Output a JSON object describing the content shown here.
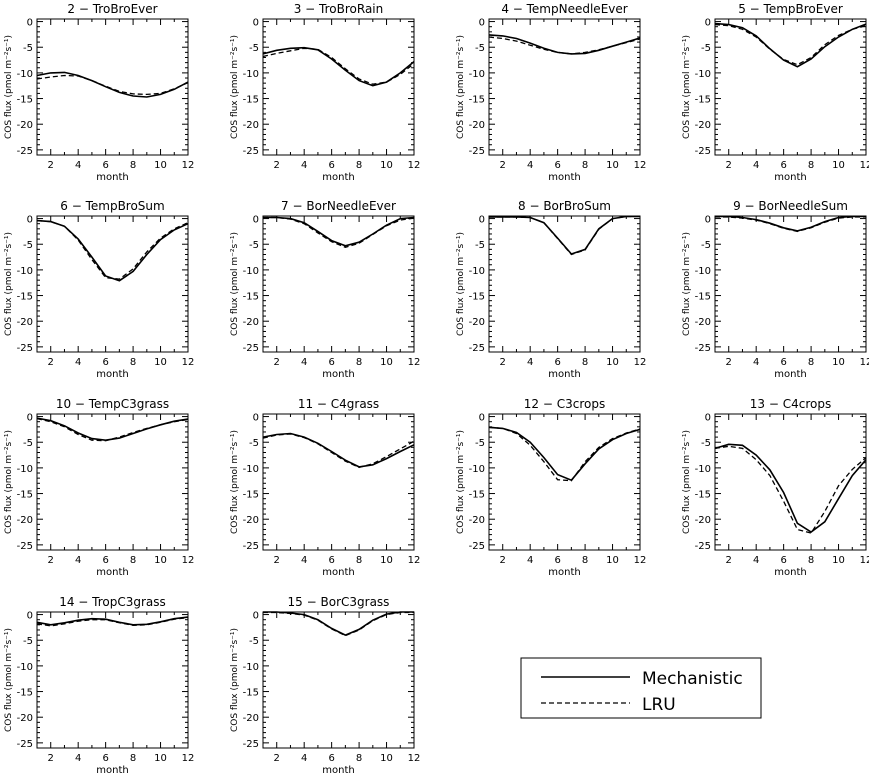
{
  "legend": {
    "placement": "bottom-right",
    "entries": [
      {
        "label": "Mechanistic",
        "style": "solid"
      },
      {
        "label": "LRU",
        "style": "dashed"
      }
    ]
  },
  "shared": {
    "xlabel": "month",
    "ylabel": "COS flux (pmol m⁻²s⁻¹)",
    "xlim": [
      1,
      12
    ],
    "ylim": [
      -26,
      0.5
    ],
    "xticks": [
      2,
      4,
      6,
      8,
      10,
      12
    ],
    "yticks": [
      0,
      -5,
      -10,
      -15,
      -20,
      -25
    ],
    "color": "#000000"
  },
  "chart_data": [
    {
      "type": "line",
      "title": "2 − TroBroEver",
      "x": [
        1,
        2,
        3,
        4,
        5,
        6,
        7,
        8,
        9,
        10,
        11,
        12
      ],
      "series": [
        {
          "name": "Mechanistic",
          "values": [
            -10.5,
            -10.0,
            -9.9,
            -10.5,
            -11.5,
            -12.7,
            -13.8,
            -14.5,
            -14.7,
            -14.2,
            -13.2,
            -11.8
          ]
        },
        {
          "name": "LRU",
          "values": [
            -11.2,
            -10.8,
            -10.5,
            -10.6,
            -11.5,
            -12.6,
            -13.6,
            -14.1,
            -14.2,
            -14.0,
            -13.1,
            -11.9
          ]
        }
      ]
    },
    {
      "type": "line",
      "title": "3 − TroBroRain",
      "x": [
        1,
        2,
        3,
        4,
        5,
        6,
        7,
        8,
        9,
        10,
        11,
        12
      ],
      "series": [
        {
          "name": "Mechanistic",
          "values": [
            -6.3,
            -5.6,
            -5.2,
            -5.1,
            -5.5,
            -7.3,
            -9.5,
            -11.5,
            -12.5,
            -11.8,
            -10.0,
            -7.8
          ]
        },
        {
          "name": "LRU",
          "values": [
            -6.8,
            -6.2,
            -5.7,
            -5.2,
            -5.4,
            -7.0,
            -9.2,
            -11.2,
            -12.2,
            -11.8,
            -10.3,
            -8.2
          ]
        }
      ]
    },
    {
      "type": "line",
      "title": "4 − TempNeedleEver",
      "x": [
        1,
        2,
        3,
        4,
        5,
        6,
        7,
        8,
        9,
        10,
        11,
        12
      ],
      "series": [
        {
          "name": "Mechanistic",
          "values": [
            -2.6,
            -2.8,
            -3.3,
            -4.2,
            -5.2,
            -6.0,
            -6.3,
            -6.2,
            -5.6,
            -4.8,
            -4.0,
            -3.2
          ]
        },
        {
          "name": "LRU",
          "values": [
            -3.0,
            -3.3,
            -3.8,
            -4.6,
            -5.4,
            -6.0,
            -6.3,
            -6.0,
            -5.5,
            -4.8,
            -4.1,
            -3.4
          ]
        }
      ]
    },
    {
      "type": "line",
      "title": "5 − TempBroEver",
      "x": [
        1,
        2,
        3,
        4,
        5,
        6,
        7,
        8,
        9,
        10,
        11,
        12
      ],
      "series": [
        {
          "name": "Mechanistic",
          "values": [
            -0.4,
            -0.6,
            -1.2,
            -2.8,
            -5.3,
            -7.5,
            -8.8,
            -7.3,
            -4.9,
            -3.0,
            -1.5,
            -0.5
          ]
        },
        {
          "name": "LRU",
          "values": [
            -0.6,
            -0.8,
            -1.5,
            -3.0,
            -5.4,
            -7.4,
            -8.4,
            -7.0,
            -4.5,
            -2.7,
            -1.5,
            -0.8
          ]
        }
      ]
    },
    {
      "type": "line",
      "title": "6 − TempBroSum",
      "x": [
        1,
        2,
        3,
        4,
        5,
        6,
        7,
        8,
        9,
        10,
        11,
        12
      ],
      "series": [
        {
          "name": "Mechanistic",
          "values": [
            -0.4,
            -0.6,
            -1.5,
            -4.0,
            -7.5,
            -11.2,
            -12.1,
            -10.3,
            -7.0,
            -4.1,
            -2.2,
            -1.0
          ]
        },
        {
          "name": "LRU",
          "values": [
            -0.4,
            -0.6,
            -1.5,
            -4.2,
            -8.0,
            -11.5,
            -11.8,
            -9.8,
            -6.5,
            -3.8,
            -2.0,
            -0.8
          ]
        }
      ]
    },
    {
      "type": "line",
      "title": "7 − BorNeedleEver",
      "x": [
        1,
        2,
        3,
        4,
        5,
        6,
        7,
        8,
        9,
        10,
        11,
        12
      ],
      "series": [
        {
          "name": "Mechanistic",
          "values": [
            0.2,
            0.2,
            0.0,
            -0.8,
            -2.5,
            -4.3,
            -5.3,
            -4.6,
            -3.0,
            -1.3,
            0.0,
            0.2
          ]
        },
        {
          "name": "LRU",
          "values": [
            0.2,
            0.2,
            -0.1,
            -1.0,
            -2.8,
            -4.5,
            -5.6,
            -4.8,
            -3.1,
            -1.4,
            -0.3,
            0.1
          ]
        }
      ]
    },
    {
      "type": "line",
      "title": "8 − BorBroSum",
      "x": [
        1,
        2,
        3,
        4,
        5,
        6,
        7,
        8,
        9,
        10,
        11,
        12
      ],
      "series": [
        {
          "name": "Mechanistic",
          "values": [
            0.3,
            0.3,
            0.3,
            0.2,
            -0.8,
            -3.8,
            -6.9,
            -6.0,
            -2.0,
            0.0,
            0.4,
            0.4
          ]
        },
        {
          "name": "LRU",
          "values": [
            0.3,
            0.3,
            0.3,
            0.2,
            -0.8,
            -3.9,
            -7.0,
            -6.1,
            -2.1,
            0.0,
            0.4,
            0.4
          ]
        }
      ]
    },
    {
      "type": "line",
      "title": "9 − BorNeedleSum",
      "x": [
        1,
        2,
        3,
        4,
        5,
        6,
        7,
        8,
        9,
        10,
        11,
        12
      ],
      "series": [
        {
          "name": "Mechanistic",
          "values": [
            0.4,
            0.4,
            0.2,
            -0.2,
            -0.9,
            -1.8,
            -2.4,
            -1.7,
            -0.6,
            0.2,
            0.4,
            0.4
          ]
        },
        {
          "name": "LRU",
          "values": [
            0.3,
            0.3,
            0.1,
            -0.3,
            -1.0,
            -1.9,
            -2.5,
            -1.8,
            -0.7,
            0.1,
            0.3,
            0.3
          ]
        }
      ]
    },
    {
      "type": "line",
      "title": "10 − TempC3grass",
      "x": [
        1,
        2,
        3,
        4,
        5,
        6,
        7,
        8,
        9,
        10,
        11,
        12
      ],
      "series": [
        {
          "name": "Mechanistic",
          "values": [
            -0.3,
            -0.8,
            -1.8,
            -3.2,
            -4.3,
            -4.6,
            -4.2,
            -3.3,
            -2.4,
            -1.6,
            -0.9,
            -0.5
          ]
        },
        {
          "name": "LRU",
          "values": [
            -0.4,
            -1.0,
            -2.0,
            -3.5,
            -4.6,
            -4.7,
            -4.0,
            -3.1,
            -2.3,
            -1.6,
            -1.0,
            -0.6
          ]
        }
      ]
    },
    {
      "type": "line",
      "title": "11 − C4grass",
      "x": [
        1,
        2,
        3,
        4,
        5,
        6,
        7,
        8,
        9,
        10,
        11,
        12
      ],
      "series": [
        {
          "name": "Mechanistic",
          "values": [
            -4.0,
            -3.5,
            -3.3,
            -4.0,
            -5.2,
            -6.8,
            -8.5,
            -9.8,
            -9.4,
            -8.2,
            -6.8,
            -5.5
          ]
        },
        {
          "name": "LRU",
          "values": [
            -4.2,
            -3.6,
            -3.4,
            -4.1,
            -5.3,
            -7.0,
            -8.7,
            -9.9,
            -9.2,
            -7.8,
            -6.3,
            -4.8
          ]
        }
      ]
    },
    {
      "type": "line",
      "title": "12 − C3crops",
      "x": [
        1,
        2,
        3,
        4,
        5,
        6,
        7,
        8,
        9,
        10,
        11,
        12
      ],
      "series": [
        {
          "name": "Mechanistic",
          "values": [
            -2.1,
            -2.3,
            -3.1,
            -5.0,
            -8.0,
            -11.3,
            -12.4,
            -9.2,
            -6.3,
            -4.5,
            -3.3,
            -2.5
          ]
        },
        {
          "name": "LRU",
          "values": [
            -2.1,
            -2.3,
            -3.3,
            -5.6,
            -8.8,
            -12.3,
            -12.5,
            -8.8,
            -6.0,
            -4.3,
            -3.2,
            -2.4
          ]
        }
      ]
    },
    {
      "type": "line",
      "title": "13 − C4crops",
      "x": [
        1,
        2,
        3,
        4,
        5,
        6,
        7,
        8,
        9,
        10,
        11,
        12
      ],
      "series": [
        {
          "name": "Mechanistic",
          "values": [
            -6.2,
            -5.4,
            -5.6,
            -7.5,
            -10.4,
            -14.8,
            -20.8,
            -22.5,
            -20.5,
            -16.0,
            -11.5,
            -8.4
          ]
        },
        {
          "name": "LRU",
          "values": [
            -6.2,
            -5.8,
            -6.2,
            -8.4,
            -11.5,
            -16.5,
            -22.0,
            -22.7,
            -18.5,
            -13.5,
            -10.3,
            -8.0
          ]
        }
      ]
    },
    {
      "type": "line",
      "title": "14 − TropC3grass",
      "x": [
        1,
        2,
        3,
        4,
        5,
        6,
        7,
        8,
        9,
        10,
        11,
        12
      ],
      "series": [
        {
          "name": "Mechanistic",
          "values": [
            -1.5,
            -2.0,
            -1.6,
            -1.1,
            -0.8,
            -0.9,
            -1.5,
            -2.0,
            -1.9,
            -1.4,
            -0.8,
            -0.5
          ]
        },
        {
          "name": "LRU",
          "values": [
            -1.8,
            -2.2,
            -1.8,
            -1.3,
            -1.0,
            -1.0,
            -1.6,
            -2.1,
            -2.0,
            -1.5,
            -0.9,
            -0.6
          ]
        }
      ]
    },
    {
      "type": "line",
      "title": "15 − BorC3grass",
      "x": [
        1,
        2,
        3,
        4,
        5,
        6,
        7,
        8,
        9,
        10,
        11,
        12
      ],
      "series": [
        {
          "name": "Mechanistic",
          "values": [
            0.5,
            0.5,
            0.3,
            0.0,
            -1.0,
            -2.7,
            -4.0,
            -2.9,
            -1.1,
            0.1,
            0.5,
            0.5
          ]
        },
        {
          "name": "LRU",
          "values": [
            0.4,
            0.4,
            0.2,
            -0.1,
            -1.1,
            -2.8,
            -4.1,
            -3.0,
            -1.2,
            0.0,
            0.4,
            0.4
          ]
        }
      ]
    }
  ]
}
